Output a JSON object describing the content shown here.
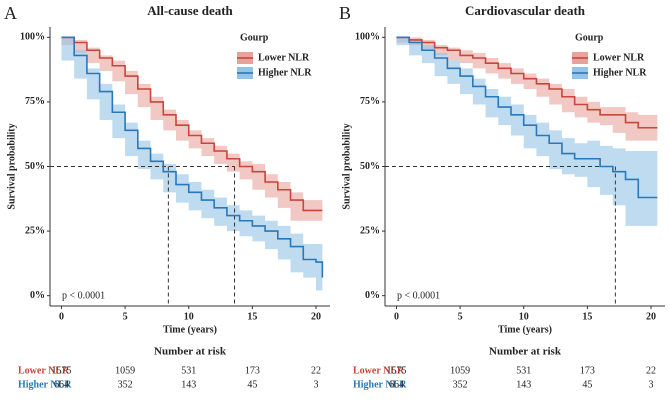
{
  "chart_data": [
    {
      "type": "line",
      "panel": "A",
      "title": "All-cause death",
      "xlabel": "Time (years)",
      "ylabel": "Survival probability",
      "legend_title": "Gourp",
      "annotation": "p < 0.0001",
      "risk_title": "Number at risk",
      "xlim": [
        -0.9,
        21.1
      ],
      "xticks": [
        0,
        5,
        10,
        15,
        20
      ],
      "ylim": [
        -4,
        104
      ],
      "yticks": [
        {
          "value": 0,
          "label": "0%"
        },
        {
          "value": 25,
          "label": "25%"
        },
        {
          "value": 50,
          "label": "50%"
        },
        {
          "value": 75,
          "label": "75%"
        },
        {
          "value": 100,
          "label": "100%"
        }
      ],
      "reference": {
        "y": 50,
        "x": [
          8.4,
          13.6
        ]
      },
      "series": [
        {
          "name": "Lower NLR",
          "color": "#c8463a",
          "band_color": "#e7a39b",
          "x": [
            0,
            1,
            2,
            3,
            4,
            5,
            6,
            7,
            8,
            9,
            10,
            11,
            12,
            13,
            14,
            15,
            16,
            17,
            18,
            19,
            20.5
          ],
          "values": [
            100,
            98,
            95,
            92,
            89,
            85,
            80,
            75,
            70,
            66,
            62,
            59,
            56,
            53,
            50,
            48,
            44,
            41,
            37,
            33,
            33
          ],
          "upper": [
            100,
            99,
            96,
            93,
            91,
            87,
            82,
            77,
            72,
            68,
            64,
            61,
            58,
            55,
            52,
            51,
            47,
            44,
            40,
            37,
            37
          ],
          "lower": [
            100,
            97,
            94,
            90,
            87,
            83,
            78,
            73,
            68,
            64,
            60,
            57,
            54,
            51,
            48,
            45,
            41,
            38,
            34,
            29,
            29
          ],
          "at_risk": [
            1575,
            1059,
            531,
            173,
            22
          ]
        },
        {
          "name": "Higher NLR",
          "color": "#2a78b8",
          "band_color": "#94c3e6",
          "x": [
            0,
            1,
            2,
            3,
            4,
            5,
            6,
            7,
            8,
            9,
            10,
            11,
            12,
            13,
            14,
            15,
            16,
            17,
            18,
            19,
            20,
            20.5
          ],
          "values": [
            100,
            93,
            86,
            79,
            71,
            64,
            57,
            52,
            48,
            43,
            40,
            37,
            34,
            31,
            29,
            27,
            25,
            22,
            19,
            14,
            13,
            7
          ],
          "upper": [
            100,
            95,
            88,
            82,
            74,
            67,
            60,
            55,
            51,
            47,
            44,
            41,
            38,
            35,
            33,
            31,
            29,
            27,
            24,
            20,
            20,
            14
          ],
          "lower": [
            100,
            91,
            84,
            76,
            68,
            61,
            54,
            49,
            45,
            40,
            36,
            33,
            30,
            27,
            25,
            23,
            21,
            18,
            14,
            9,
            7,
            2
          ],
          "at_risk": [
            664,
            352,
            143,
            45,
            3
          ]
        }
      ]
    },
    {
      "type": "line",
      "panel": "B",
      "title": "Cardiovascular death",
      "xlabel": "Time (years)",
      "ylabel": "Survival probability",
      "legend_title": "Gourp",
      "annotation": "p < 0.0001",
      "risk_title": "Number at risk",
      "xlim": [
        -0.9,
        21.1
      ],
      "xticks": [
        0,
        5,
        10,
        15,
        20
      ],
      "ylim": [
        -4,
        104
      ],
      "yticks": [
        {
          "value": 0,
          "label": "0%"
        },
        {
          "value": 25,
          "label": "25%"
        },
        {
          "value": 50,
          "label": "50%"
        },
        {
          "value": 75,
          "label": "75%"
        },
        {
          "value": 100,
          "label": "100%"
        }
      ],
      "reference": {
        "y": 50,
        "x": [
          17.2
        ]
      },
      "series": [
        {
          "name": "Lower NLR",
          "color": "#c8463a",
          "band_color": "#e7a39b",
          "x": [
            0,
            1,
            2,
            3,
            4,
            5,
            6,
            7,
            8,
            9,
            10,
            11,
            12,
            13,
            14,
            15,
            16,
            17,
            18,
            19,
            20.5
          ],
          "values": [
            100,
            99,
            98,
            96,
            95,
            93,
            92,
            90,
            88,
            86,
            84,
            82,
            80,
            77,
            74,
            72,
            70,
            70,
            67,
            65,
            65
          ],
          "upper": [
            100,
            100,
            99,
            97,
            96,
            95,
            94,
            92,
            90,
            88,
            86,
            84,
            82,
            80,
            77,
            75,
            73,
            73,
            71,
            70,
            70
          ],
          "lower": [
            100,
            98,
            97,
            95,
            93,
            91,
            90,
            88,
            86,
            84,
            82,
            80,
            77,
            74,
            71,
            69,
            67,
            66,
            63,
            60,
            60
          ],
          "at_risk": [
            1575,
            1059,
            531,
            173,
            22
          ]
        },
        {
          "name": "Higher NLR",
          "color": "#2a78b8",
          "band_color": "#94c3e6",
          "x": [
            0,
            1,
            2,
            3,
            4,
            5,
            6,
            7,
            8,
            9,
            10,
            11,
            12,
            13,
            14,
            15,
            16,
            17,
            18,
            19,
            20.5
          ],
          "values": [
            100,
            98,
            95,
            92,
            88,
            85,
            81,
            77,
            73,
            70,
            66,
            62,
            59,
            55,
            53,
            53,
            50,
            48,
            45,
            38,
            38
          ],
          "upper": [
            100,
            99,
            97,
            94,
            91,
            88,
            84,
            80,
            77,
            74,
            70,
            67,
            64,
            61,
            59,
            60,
            58,
            57,
            56,
            56,
            56
          ],
          "lower": [
            100,
            97,
            93,
            90,
            85,
            82,
            78,
            74,
            69,
            66,
            62,
            57,
            54,
            49,
            47,
            46,
            42,
            39,
            35,
            27,
            27
          ],
          "at_risk": [
            664,
            352,
            143,
            45,
            3
          ]
        }
      ]
    }
  ]
}
